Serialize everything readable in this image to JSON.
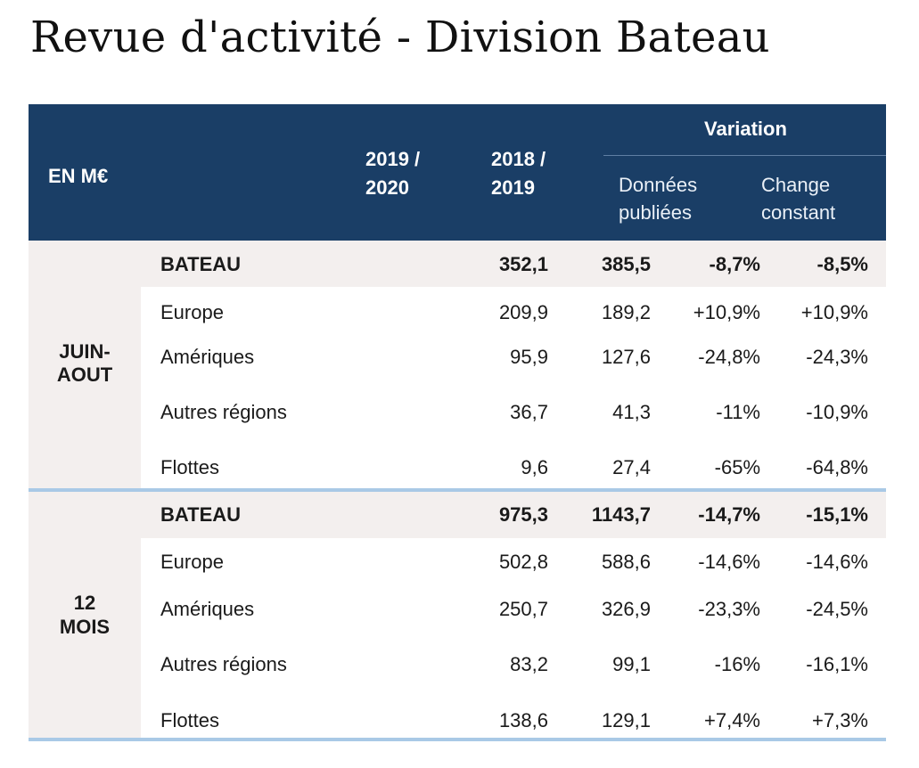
{
  "title": "Revue d'activité - Division Bateau",
  "header": {
    "unit": "EN M€",
    "col1_line1": "2019 /",
    "col1_line2": "2020",
    "col2_line1": "2018 /",
    "col2_line2": "2019",
    "variation": "Variation",
    "sub1_line1": "Données",
    "sub1_line2": "publiées",
    "sub2_line1": "Change",
    "sub2_line2": "constant"
  },
  "sections": [
    {
      "label_line1": "JUIN-",
      "label_line2": "AOUT",
      "rows": [
        {
          "label": "BATEAU",
          "v2020": "352,1",
          "v2019": "385,5",
          "pub": "-8,7%",
          "cst": "-8,5%"
        },
        {
          "label": "Europe",
          "v2020": "209,9",
          "v2019": "189,2",
          "pub": "+10,9%",
          "cst": "+10,9%"
        },
        {
          "label": "Amériques",
          "v2020": "95,9",
          "v2019": "127,6",
          "pub": "-24,8%",
          "cst": "-24,3%"
        },
        {
          "label": "Autres régions",
          "v2020": "36,7",
          "v2019": "41,3",
          "pub": "-11%",
          "cst": "-10,9%"
        },
        {
          "label": "Flottes",
          "v2020": "9,6",
          "v2019": "27,4",
          "pub": "-65%",
          "cst": "-64,8%"
        }
      ]
    },
    {
      "label_line1": "12",
      "label_line2": "MOIS",
      "rows": [
        {
          "label": "BATEAU",
          "v2020": "975,3",
          "v2019": "1143,7",
          "pub": "-14,7%",
          "cst": "-15,1%"
        },
        {
          "label": "Europe",
          "v2020": "502,8",
          "v2019": "588,6",
          "pub": "-14,6%",
          "cst": "-14,6%"
        },
        {
          "label": "Amériques",
          "v2020": "250,7",
          "v2019": "326,9",
          "pub": "-23,3%",
          "cst": "-24,5%"
        },
        {
          "label": "Autres régions",
          "v2020": "83,2",
          "v2019": "99,1",
          "pub": "-16%",
          "cst": "-16,1%"
        },
        {
          "label": "Flottes",
          "v2020": "138,6",
          "v2019": "129,1",
          "pub": "+7,4%",
          "cst": "+7,3%"
        }
      ]
    }
  ]
}
